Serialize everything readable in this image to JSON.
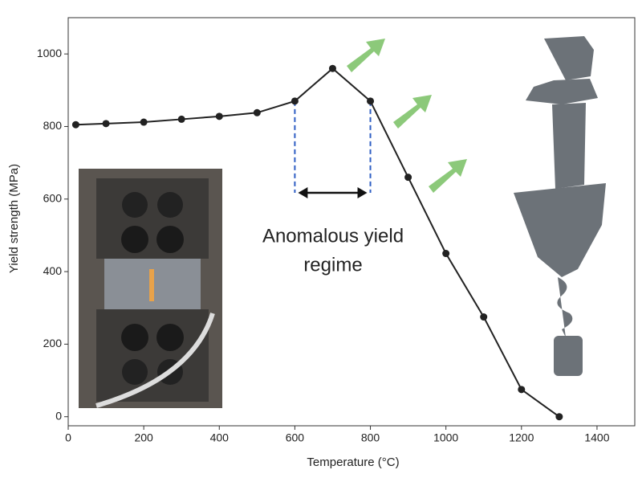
{
  "chart_data": {
    "type": "line",
    "x_label": "Temperature (°C)",
    "y_label": "Yield strength (MPa)",
    "annotation_lines": [
      "Anomalous yield",
      "regime"
    ],
    "x": [
      20,
      100,
      200,
      300,
      400,
      500,
      600,
      700,
      800,
      900,
      1000,
      1100,
      1200,
      1300
    ],
    "series": [
      {
        "name": "Yield strength",
        "color": "#222222",
        "values": [
          805,
          808,
          812,
          820,
          828,
          838,
          870,
          960,
          870,
          660,
          450,
          275,
          75,
          0
        ]
      }
    ],
    "xlim": [
      0,
      1500
    ],
    "ylim": [
      -25,
      1100
    ],
    "xticks": [
      0,
      200,
      400,
      600,
      800,
      1000,
      1200,
      1400
    ],
    "yticks": [
      0,
      200,
      400,
      600,
      800,
      1000
    ],
    "grid": false
  }
}
